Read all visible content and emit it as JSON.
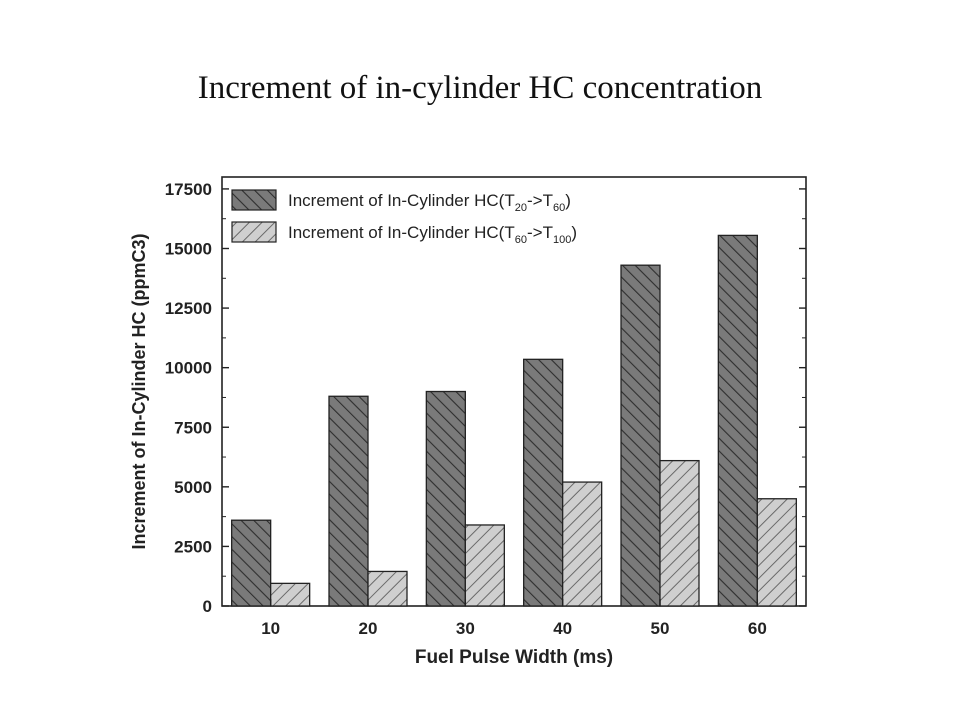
{
  "slide": {
    "title": "Increment of in-cylinder HC concentration"
  },
  "chart_data": {
    "type": "bar",
    "categories": [
      "10",
      "20",
      "30",
      "40",
      "50",
      "60"
    ],
    "series": [
      {
        "name": "Increment of In-Cylinder HC(T20->T60)",
        "name_parts": {
          "base": "Increment of In-Cylinder HC(T",
          "sub1": "20",
          "mid": "->T",
          "sub2": "60",
          "end": ")"
        },
        "values": [
          3600,
          8800,
          9000,
          10350,
          14300,
          15550
        ],
        "fill": "#7a7a7a",
        "hatch": "backslash"
      },
      {
        "name": "Increment of In-Cylinder HC(T60->T100)",
        "name_parts": {
          "base": "Increment of In-Cylinder HC(T",
          "sub1": "60",
          "mid": "->T",
          "sub2": "100",
          "end": ")"
        },
        "values": [
          950,
          1450,
          3400,
          5200,
          6100,
          4500
        ],
        "fill": "#cfcfcf",
        "hatch": "slash"
      }
    ],
    "xlabel": "Fuel Pulse Width (ms)",
    "ylabel": "Increment of In-Cylinder HC (ppmC3)",
    "ylim": [
      0,
      18000
    ],
    "yticks": [
      0,
      2500,
      5000,
      7500,
      10000,
      12500,
      15000,
      17500
    ],
    "ytick_labels": [
      "0",
      "2500",
      "5000",
      "7500",
      "10000",
      "12500",
      "15000",
      "17500"
    ],
    "grid": false,
    "legend_position": "top-left"
  }
}
